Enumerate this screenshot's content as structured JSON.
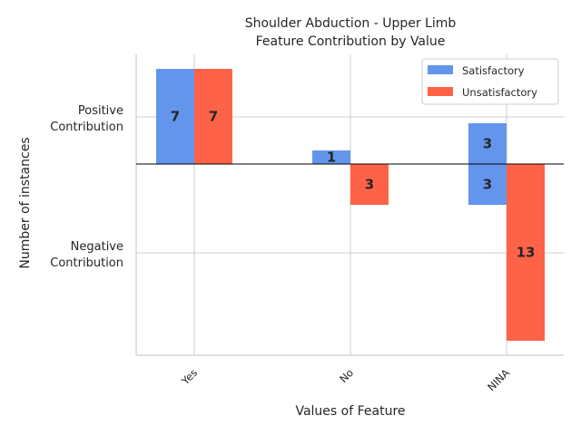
{
  "chart_data": {
    "type": "bar",
    "title_line1": "Shoulder Abduction - Upper Limb",
    "title_line2": "Feature Contribution by Value",
    "xlabel": "Values of Feature",
    "ylabel": "Number of instances",
    "categories": [
      "Yes",
      "No",
      "NINA"
    ],
    "ytick_labels": {
      "positive": [
        "Positive",
        "Contribution"
      ],
      "negative": [
        "Negative",
        "Contribution"
      ]
    },
    "grid": true,
    "legend_position": "upper right",
    "colors": {
      "satisfactory": "#6495ED",
      "unsatisfactory": "#FF6347"
    },
    "series": [
      {
        "name": "Satisfactory",
        "positive": [
          7,
          1,
          3
        ],
        "negative": [
          0,
          0,
          3
        ]
      },
      {
        "name": "Unsatisfactory",
        "positive": [
          7,
          0,
          0
        ],
        "negative": [
          0,
          3,
          13
        ]
      }
    ]
  }
}
